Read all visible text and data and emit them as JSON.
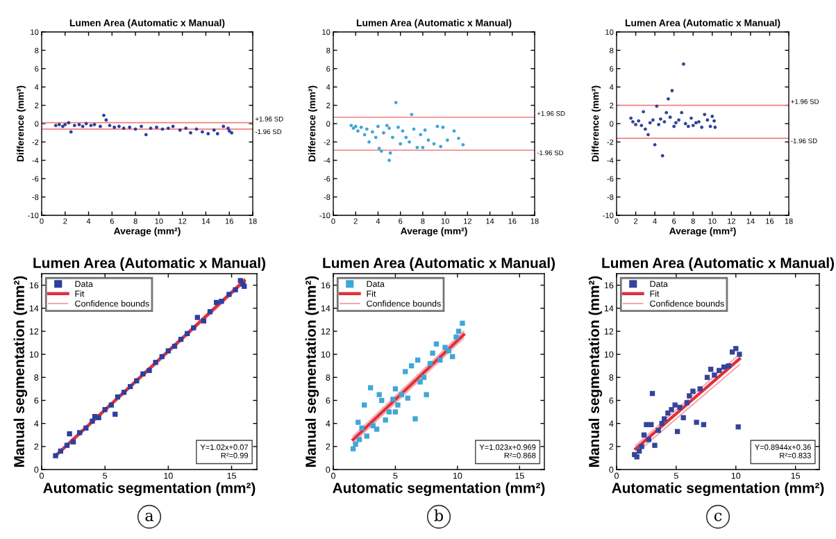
{
  "chart_data": [
    {
      "type": "scatter",
      "title": "Lumen Area (Automatic x Manual)",
      "xlabel": "Average (mm²)",
      "ylabel": "Difference (mm²)",
      "xlim": [
        0,
        18
      ],
      "ylim": [
        -10,
        10
      ],
      "xticks": [
        0,
        2,
        4,
        6,
        8,
        10,
        12,
        14,
        16,
        18
      ],
      "yticks": [
        -10,
        -8,
        -6,
        -4,
        -2,
        0,
        2,
        4,
        6,
        8,
        10
      ],
      "marker": "circle",
      "legend": false,
      "ref_lines": [
        {
          "axis": "y",
          "value": 0.1,
          "label": "+1.96 SD",
          "color": "#f08080"
        },
        {
          "axis": "y",
          "value": -0.6,
          "label": "-1.96 SD",
          "color": "#f08080"
        }
      ],
      "series": [
        {
          "type": "scatter",
          "color": "#2b3f9e",
          "x": [
            1.2,
            1.5,
            1.8,
            2.0,
            2.3,
            2.5,
            2.8,
            3.2,
            3.5,
            3.8,
            4.2,
            4.5,
            5.0,
            5.3,
            5.5,
            5.8,
            6.2,
            6.6,
            7.0,
            7.5,
            8.0,
            8.5,
            8.9,
            9.3,
            9.8,
            10.3,
            10.8,
            11.2,
            11.8,
            12.3,
            12.7,
            13.2,
            13.7,
            14.2,
            14.7,
            15.0,
            15.5,
            15.9,
            16.0,
            16.2
          ],
          "values": [
            -0.2,
            -0.1,
            -0.3,
            -0.1,
            0.1,
            -0.9,
            -0.2,
            -0.1,
            -0.3,
            0.0,
            -0.2,
            -0.1,
            -0.3,
            0.9,
            0.4,
            -0.2,
            -0.4,
            -0.3,
            -0.5,
            -0.4,
            -0.6,
            -0.3,
            -1.2,
            -0.5,
            -0.4,
            -0.6,
            -0.5,
            -0.3,
            -0.7,
            -0.5,
            -1.0,
            -0.6,
            -0.9,
            -1.1,
            -0.7,
            -1.1,
            -0.3,
            -0.5,
            -0.8,
            -1.0
          ]
        }
      ]
    },
    {
      "type": "scatter",
      "title": "Lumen Area (Automatic x Manual)",
      "xlabel": "Average (mm²)",
      "ylabel": "Difference (mm²)",
      "xlim": [
        0,
        18
      ],
      "ylim": [
        -10,
        10
      ],
      "xticks": [
        0,
        2,
        4,
        6,
        8,
        10,
        12,
        14,
        16,
        18
      ],
      "yticks": [
        -10,
        -8,
        -6,
        -4,
        -2,
        0,
        2,
        4,
        6,
        8,
        10
      ],
      "marker": "circle",
      "legend": false,
      "ref_lines": [
        {
          "axis": "y",
          "value": 0.7,
          "label": "+1.96 SD",
          "color": "#f08080"
        },
        {
          "axis": "y",
          "value": -2.9,
          "label": "-1.96 SD",
          "color": "#f08080"
        }
      ],
      "series": [
        {
          "type": "scatter",
          "color": "#3fa7d6",
          "x": [
            1.6,
            1.8,
            2.0,
            2.2,
            2.5,
            2.8,
            3.0,
            3.2,
            3.5,
            3.8,
            4.0,
            4.1,
            4.3,
            4.5,
            4.8,
            5.0,
            5.0,
            5.1,
            5.3,
            5.6,
            5.8,
            6.0,
            6.2,
            6.5,
            6.8,
            7.0,
            7.2,
            7.5,
            7.8,
            8.0,
            8.2,
            8.5,
            9.0,
            9.3,
            9.6,
            9.8,
            10.2,
            10.8,
            11.2,
            11.6
          ],
          "values": [
            -0.2,
            -0.5,
            -0.3,
            -0.8,
            -0.4,
            -1.2,
            -0.6,
            -2.0,
            -0.9,
            -1.5,
            -0.3,
            -2.7,
            -3.0,
            -1.0,
            -0.2,
            -0.5,
            -4.0,
            -3.2,
            -1.5,
            2.3,
            -0.4,
            -2.2,
            -0.8,
            -1.5,
            -2.0,
            1.0,
            -0.6,
            -2.6,
            -1.2,
            -2.6,
            -0.7,
            -1.8,
            -2.2,
            -0.3,
            -2.5,
            -0.4,
            -1.8,
            -0.8,
            -1.6,
            -2.3
          ]
        }
      ]
    },
    {
      "type": "scatter",
      "title": "Lumen Area (Automatic x Manual)",
      "xlabel": "Average (mm²)",
      "ylabel": "Difference (mm²)",
      "xlim": [
        0,
        18
      ],
      "ylim": [
        -10,
        10
      ],
      "xticks": [
        0,
        2,
        4,
        6,
        8,
        10,
        12,
        14,
        16,
        18
      ],
      "yticks": [
        -10,
        -8,
        -6,
        -4,
        -2,
        0,
        2,
        4,
        6,
        8,
        10
      ],
      "marker": "circle",
      "legend": false,
      "ref_lines": [
        {
          "axis": "y",
          "value": 2.0,
          "label": "+1.96 SD",
          "color": "#f08080"
        },
        {
          "axis": "y",
          "value": -1.6,
          "label": "-1.96 SD",
          "color": "#f08080"
        }
      ],
      "series": [
        {
          "type": "scatter",
          "color": "#34449a",
          "x": [
            1.5,
            1.7,
            2.0,
            2.3,
            2.6,
            2.8,
            3.0,
            3.3,
            3.5,
            3.8,
            4.0,
            4.2,
            4.4,
            4.6,
            4.8,
            5.0,
            5.2,
            5.4,
            5.6,
            5.8,
            6.0,
            6.2,
            6.5,
            6.8,
            7.0,
            7.2,
            7.5,
            7.8,
            8.0,
            8.3,
            8.6,
            8.9,
            9.2,
            9.5,
            9.8,
            10.0,
            10.2,
            10.3
          ],
          "values": [
            0.6,
            0.2,
            -0.1,
            0.3,
            -0.2,
            1.3,
            -0.6,
            -1.2,
            0.1,
            0.4,
            -2.3,
            1.9,
            -0.1,
            0.5,
            -3.5,
            0.2,
            1.2,
            2.7,
            0.7,
            3.6,
            -0.3,
            0.1,
            0.4,
            1.2,
            6.5,
            0.0,
            -0.3,
            0.6,
            -0.2,
            0.1,
            0.2,
            -0.4,
            1.0,
            0.4,
            -0.3,
            0.8,
            0.3,
            -0.4
          ]
        }
      ]
    },
    {
      "type": "scatter",
      "title": "Lumen Area (Automatic x Manual)",
      "xlabel": "Automatic segmentation (mm²)",
      "ylabel": "Manual segmentation (mm²)",
      "xlim": [
        0,
        17
      ],
      "ylim": [
        0,
        17
      ],
      "xticks": [
        0,
        5,
        10,
        15
      ],
      "yticks": [
        0,
        2,
        4,
        6,
        8,
        10,
        12,
        14,
        16
      ],
      "legend": "top left",
      "annotations": [
        "Y=1.02x+0.07\nR²=0.99",
        "a"
      ],
      "series": [
        {
          "name": "Data",
          "type": "scatter",
          "marker": "square",
          "color": "#2b3f9e",
          "x": [
            1.1,
            1.5,
            2.0,
            2.2,
            2.5,
            3.0,
            3.5,
            4.0,
            4.2,
            4.5,
            5.0,
            5.5,
            5.8,
            6.0,
            6.5,
            7.0,
            7.5,
            8.0,
            8.5,
            9.0,
            9.5,
            10.0,
            10.5,
            11.0,
            11.5,
            12.0,
            12.3,
            12.8,
            13.3,
            13.8,
            14.2,
            14.8,
            15.3,
            15.7,
            15.9,
            16.0
          ],
          "values": [
            1.2,
            1.6,
            2.1,
            3.1,
            2.4,
            3.2,
            3.6,
            4.2,
            4.6,
            4.5,
            5.2,
            5.6,
            4.8,
            6.3,
            6.7,
            7.2,
            7.7,
            8.3,
            8.6,
            9.3,
            9.8,
            10.3,
            10.7,
            11.3,
            11.8,
            12.3,
            13.2,
            12.9,
            13.7,
            14.5,
            14.6,
            15.2,
            15.6,
            16.4,
            16.1,
            15.9
          ]
        },
        {
          "name": "Fit",
          "type": "line",
          "color": "#e0303a",
          "x": [
            1.1,
            16.0
          ],
          "values": [
            1.2,
            16.4
          ]
        },
        {
          "name": "Confidence bounds",
          "type": "line",
          "color": "#f4a6ae",
          "x": [
            1.1,
            16.0
          ],
          "values": [
            1.3,
            16.5
          ]
        },
        {
          "type": "line",
          "color": "#f4a6ae",
          "x": [
            1.1,
            16.0
          ],
          "values": [
            1.1,
            16.2
          ]
        }
      ]
    },
    {
      "type": "scatter",
      "title": "Lumen Area (Automatic x Manual)",
      "xlabel": "Automatic segmentation (mm²)",
      "ylabel": "Manual segmentation (mm²)",
      "xlim": [
        0,
        17
      ],
      "ylim": [
        0,
        17
      ],
      "xticks": [
        0,
        5,
        10,
        15
      ],
      "yticks": [
        0,
        2,
        4,
        6,
        8,
        10,
        12,
        14,
        16
      ],
      "legend": "top left",
      "annotations": [
        "Y=1.023x+0.969\nR²=0.868",
        "b"
      ],
      "series": [
        {
          "name": "Data",
          "type": "scatter",
          "marker": "square",
          "color": "#3fa7d6",
          "x": [
            1.6,
            1.8,
            2.0,
            2.1,
            2.3,
            2.5,
            2.7,
            3.0,
            3.2,
            3.5,
            3.7,
            3.9,
            4.2,
            4.5,
            4.8,
            5.0,
            5.0,
            5.2,
            5.5,
            5.8,
            6.0,
            6.3,
            6.6,
            6.8,
            7.0,
            7.3,
            7.5,
            7.8,
            8.0,
            8.3,
            8.6,
            9.0,
            9.3,
            9.6,
            9.9,
            10.1,
            10.4
          ],
          "values": [
            1.8,
            2.2,
            4.1,
            2.6,
            3.6,
            5.6,
            2.9,
            7.1,
            3.8,
            3.5,
            6.5,
            6.0,
            4.3,
            5.0,
            6.1,
            7.0,
            5.0,
            5.6,
            6.5,
            8.5,
            6.2,
            9.0,
            4.4,
            9.5,
            7.6,
            8.0,
            6.5,
            9.2,
            10.1,
            10.9,
            9.5,
            10.6,
            10.3,
            9.8,
            11.5,
            12.0,
            12.7
          ]
        },
        {
          "name": "Fit",
          "type": "line",
          "color": "#e0303a",
          "x": [
            1.6,
            10.5
          ],
          "values": [
            2.6,
            11.7
          ]
        },
        {
          "name": "Confidence bounds",
          "type": "line",
          "color": "#f4a6ae",
          "x": [
            1.6,
            10.5
          ],
          "values": [
            2.9,
            12.0
          ]
        },
        {
          "type": "line",
          "color": "#f4a6ae",
          "x": [
            1.6,
            10.5
          ],
          "values": [
            2.3,
            11.4
          ]
        }
      ]
    },
    {
      "type": "scatter",
      "title": "Lumen Area (Automatic x Manual)",
      "xlabel": "Automatic segmentation (mm²)",
      "ylabel": "Manual segmentation (mm²)",
      "xlim": [
        0,
        17
      ],
      "ylim": [
        0,
        17
      ],
      "xticks": [
        0,
        5,
        10,
        15
      ],
      "yticks": [
        0,
        2,
        4,
        6,
        8,
        10,
        12,
        14,
        16
      ],
      "legend": "top left",
      "annotations": [
        "Y=0.8944x+0.36\nR²=0.833",
        "c"
      ],
      "series": [
        {
          "name": "Data",
          "type": "scatter",
          "marker": "square",
          "color": "#34449a",
          "x": [
            1.5,
            1.7,
            1.9,
            2.1,
            2.3,
            2.5,
            2.7,
            2.9,
            3.0,
            3.2,
            3.5,
            3.8,
            4.0,
            4.3,
            4.6,
            4.9,
            5.1,
            5.3,
            5.6,
            5.9,
            6.1,
            6.4,
            6.7,
            7.0,
            7.3,
            7.6,
            7.9,
            8.2,
            8.6,
            9.0,
            9.4,
            9.7,
            10.0,
            10.2,
            10.3
          ],
          "values": [
            1.3,
            1.1,
            1.6,
            2.0,
            3.0,
            3.9,
            2.6,
            3.9,
            6.6,
            2.1,
            3.4,
            4.0,
            4.4,
            4.9,
            5.2,
            5.6,
            3.3,
            5.4,
            4.5,
            5.8,
            6.4,
            6.8,
            4.1,
            7.0,
            3.9,
            8.0,
            8.7,
            8.2,
            8.6,
            8.9,
            9.0,
            10.2,
            10.5,
            3.7,
            10.0
          ]
        },
        {
          "name": "Fit",
          "type": "line",
          "color": "#e0303a",
          "x": [
            1.6,
            10.3
          ],
          "values": [
            1.8,
            9.6
          ]
        },
        {
          "name": "Confidence bounds",
          "type": "line",
          "color": "#f4a6ae",
          "x": [
            1.6,
            10.3
          ],
          "values": [
            2.1,
            10.0
          ]
        },
        {
          "type": "line",
          "color": "#f4a6ae",
          "x": [
            1.6,
            10.3
          ],
          "values": [
            1.4,
            9.1
          ]
        }
      ]
    }
  ]
}
